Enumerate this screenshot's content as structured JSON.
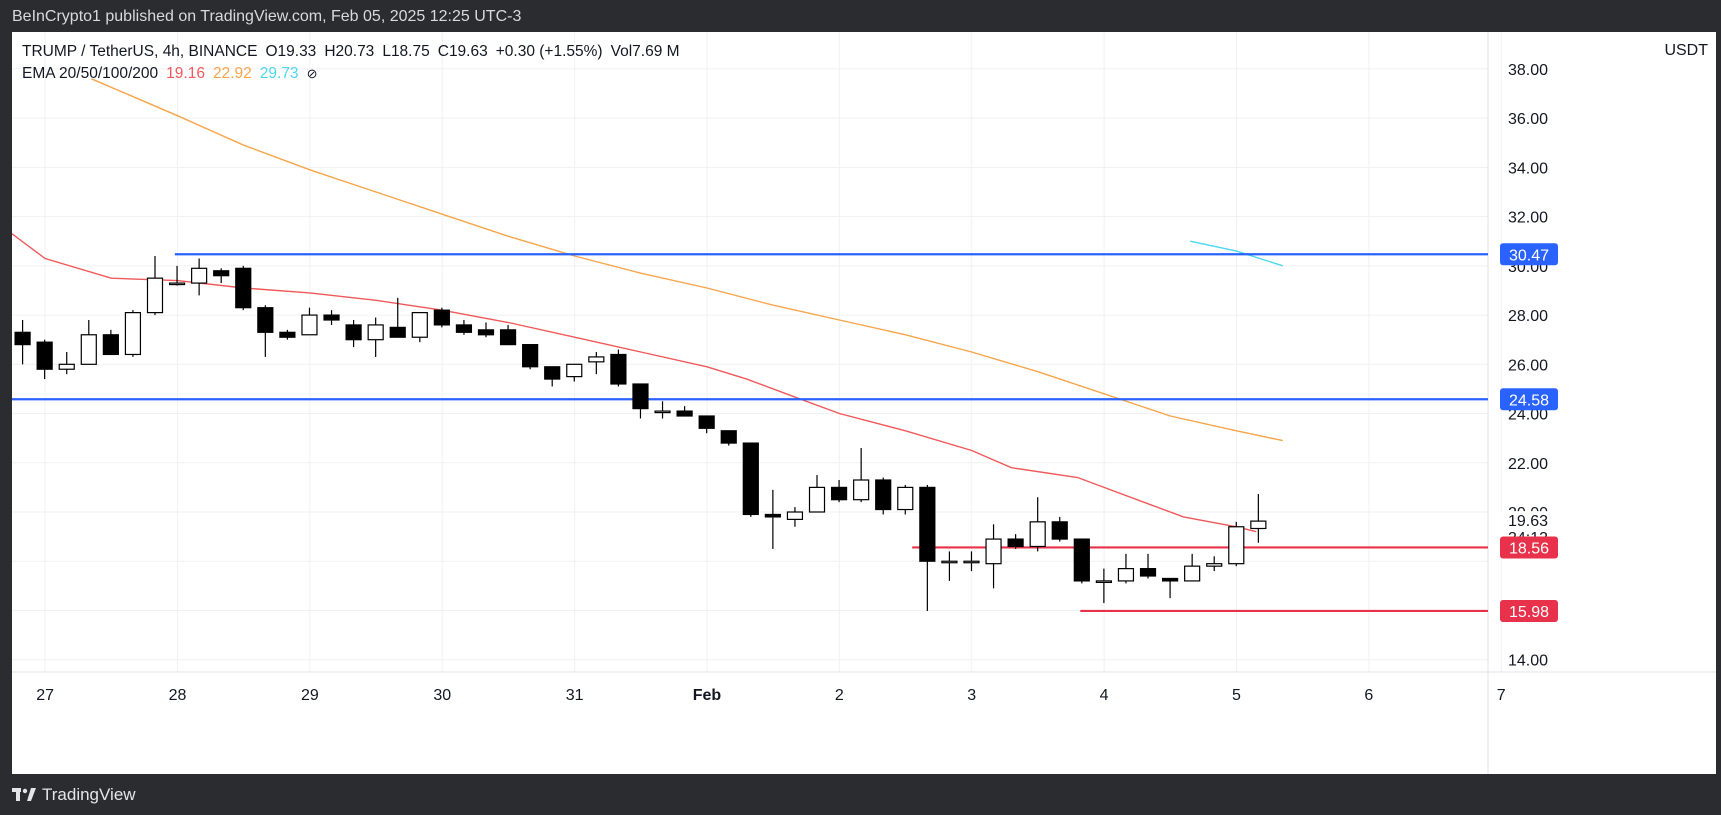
{
  "header": {
    "publisher": "BeInCrypto1 published on TradingView.com, Feb 05, 2025 12:25 UTC-3"
  },
  "footer": {
    "brand": "TradingView"
  },
  "legend": {
    "symbol": "TRUMP / TetherUS, 4h, BINANCE",
    "open_label": "O",
    "open": "19.33",
    "high_label": "H",
    "high": "20.73",
    "low_label": "L",
    "low": "18.75",
    "close_label": "C",
    "close": "19.63",
    "change": "+0.30 (+1.55%)",
    "vol_label": "Vol",
    "vol": "7.69 M",
    "ema_label": "EMA 20/50/100/200",
    "ema20": "19.16",
    "ema50": "22.92",
    "ema100": "29.73",
    "ema_hidden_icon": "eye-slash-icon"
  },
  "colors": {
    "ema20": "#f0595a",
    "ema50": "#f7a54a",
    "ema100": "#4dd7f0",
    "support": "#e8314a",
    "resistance": "#2962ff",
    "up_body": "#ffffff",
    "down_body": "#000000"
  },
  "chart_data": {
    "type": "candlestick",
    "unit": "USDT",
    "ylim": [
      13.5,
      39.5
    ],
    "yticks": [
      "14.00",
      "",
      "",
      "20.00",
      "22.00",
      "24.00",
      "26.00",
      "28.00",
      "30.00",
      "32.00",
      "34.00",
      "36.00",
      "38.00"
    ],
    "ytick_values": [
      14,
      16,
      18,
      20,
      22,
      24,
      26,
      28,
      30,
      32,
      34,
      36,
      38
    ],
    "xlim": [
      26.75,
      37.9
    ],
    "xticks": [
      {
        "x": 27,
        "label": "27"
      },
      {
        "x": 28,
        "label": "28"
      },
      {
        "x": 29,
        "label": "29"
      },
      {
        "x": 30,
        "label": "30"
      },
      {
        "x": 31,
        "label": "31"
      },
      {
        "x": 32,
        "label": "Feb"
      },
      {
        "x": 33,
        "label": "2"
      },
      {
        "x": 34,
        "label": "3"
      },
      {
        "x": 35,
        "label": "4"
      },
      {
        "x": 36,
        "label": "5"
      },
      {
        "x": 37,
        "label": "6"
      },
      {
        "x": 38,
        "label": "7"
      }
    ],
    "candle_spacing_days": 0.1667,
    "first_candle_x": 26.83,
    "candles": [
      [
        27.3,
        27.8,
        26.0,
        26.8
      ],
      [
        26.9,
        27.0,
        25.4,
        25.8
      ],
      [
        25.8,
        26.5,
        25.6,
        26.0
      ],
      [
        26.0,
        27.8,
        26.0,
        27.2
      ],
      [
        27.2,
        27.4,
        26.4,
        26.4
      ],
      [
        26.4,
        28.2,
        26.3,
        28.1
      ],
      [
        28.1,
        30.4,
        28.0,
        29.5
      ],
      [
        29.3,
        30.0,
        29.2,
        29.3
      ],
      [
        29.3,
        30.3,
        28.8,
        29.9
      ],
      [
        29.8,
        29.9,
        29.3,
        29.6
      ],
      [
        29.9,
        30.0,
        28.2,
        28.3
      ],
      [
        28.3,
        28.4,
        26.3,
        27.3
      ],
      [
        27.3,
        27.4,
        27.0,
        27.1
      ],
      [
        27.2,
        28.3,
        27.2,
        28.0
      ],
      [
        28.0,
        28.2,
        27.6,
        27.8
      ],
      [
        27.6,
        27.8,
        26.7,
        27.0
      ],
      [
        27.0,
        27.9,
        26.3,
        27.6
      ],
      [
        27.5,
        28.7,
        27.1,
        27.1
      ],
      [
        27.1,
        28.1,
        26.9,
        28.1
      ],
      [
        28.2,
        28.3,
        27.5,
        27.6
      ],
      [
        27.6,
        27.8,
        27.2,
        27.3
      ],
      [
        27.4,
        27.7,
        27.1,
        27.2
      ],
      [
        27.4,
        27.6,
        26.8,
        26.8
      ],
      [
        26.8,
        26.8,
        25.8,
        25.9
      ],
      [
        25.9,
        25.9,
        25.1,
        25.4
      ],
      [
        25.5,
        26.0,
        25.3,
        26.0
      ],
      [
        26.1,
        26.5,
        25.6,
        26.3
      ],
      [
        26.4,
        26.6,
        25.1,
        25.2
      ],
      [
        25.2,
        25.2,
        23.8,
        24.2
      ],
      [
        24.1,
        24.5,
        23.8,
        24.1
      ],
      [
        24.1,
        24.3,
        23.9,
        23.9
      ],
      [
        23.9,
        23.9,
        23.2,
        23.4
      ],
      [
        23.3,
        23.3,
        22.7,
        22.8
      ],
      [
        22.8,
        22.8,
        19.8,
        19.9
      ],
      [
        19.9,
        20.9,
        18.5,
        19.8
      ],
      [
        19.7,
        20.2,
        19.4,
        20.0
      ],
      [
        20.0,
        21.5,
        20.0,
        21.0
      ],
      [
        21.0,
        21.3,
        20.4,
        20.5
      ],
      [
        20.5,
        22.6,
        20.4,
        21.3
      ],
      [
        21.3,
        21.4,
        19.9,
        20.1
      ],
      [
        20.1,
        21.1,
        19.9,
        21.0
      ],
      [
        21.0,
        21.1,
        15.98,
        18.0
      ],
      [
        18.0,
        18.4,
        17.2,
        18.0
      ],
      [
        18.0,
        18.4,
        17.6,
        18.0
      ],
      [
        17.9,
        19.5,
        16.9,
        18.9
      ],
      [
        18.9,
        19.1,
        18.5,
        18.6
      ],
      [
        18.6,
        20.6,
        18.4,
        19.6
      ],
      [
        19.6,
        19.8,
        18.8,
        18.9
      ],
      [
        18.9,
        18.9,
        17.1,
        17.2
      ],
      [
        17.2,
        17.7,
        16.3,
        17.2
      ],
      [
        17.2,
        18.3,
        17.1,
        17.7
      ],
      [
        17.7,
        18.3,
        17.3,
        17.4
      ],
      [
        17.3,
        17.3,
        16.5,
        17.2
      ],
      [
        17.2,
        18.3,
        17.2,
        17.8
      ],
      [
        17.8,
        18.2,
        17.6,
        17.9
      ],
      [
        17.9,
        19.6,
        17.8,
        19.4
      ],
      [
        19.33,
        20.73,
        18.75,
        19.63
      ]
    ],
    "ema20": [
      [
        26.75,
        31.3
      ],
      [
        27.0,
        30.3
      ],
      [
        27.5,
        29.5
      ],
      [
        28.0,
        29.4
      ],
      [
        28.5,
        29.1
      ],
      [
        29.0,
        28.9
      ],
      [
        29.5,
        28.6
      ],
      [
        30.0,
        28.2
      ],
      [
        30.5,
        27.7
      ],
      [
        31.0,
        27.1
      ],
      [
        31.5,
        26.5
      ],
      [
        32.0,
        25.9
      ],
      [
        32.3,
        25.4
      ],
      [
        32.7,
        24.6
      ],
      [
        33.0,
        24.0
      ],
      [
        33.5,
        23.3
      ],
      [
        34.0,
        22.5
      ],
      [
        34.3,
        21.8
      ],
      [
        34.8,
        21.4
      ],
      [
        35.3,
        20.4
      ],
      [
        35.6,
        19.8
      ],
      [
        36.0,
        19.4
      ],
      [
        36.15,
        19.2
      ]
    ],
    "ema50": [
      [
        27.35,
        37.6
      ],
      [
        28.0,
        36.1
      ],
      [
        28.5,
        34.9
      ],
      [
        29.0,
        33.9
      ],
      [
        29.5,
        33.0
      ],
      [
        30.0,
        32.1
      ],
      [
        30.5,
        31.2
      ],
      [
        31.0,
        30.4
      ],
      [
        31.5,
        29.7
      ],
      [
        32.0,
        29.1
      ],
      [
        32.5,
        28.4
      ],
      [
        33.0,
        27.8
      ],
      [
        33.5,
        27.2
      ],
      [
        34.0,
        26.5
      ],
      [
        34.5,
        25.7
      ],
      [
        35.0,
        24.8
      ],
      [
        35.5,
        23.9
      ],
      [
        36.0,
        23.3
      ],
      [
        36.35,
        22.9
      ]
    ],
    "ema100": [
      [
        35.65,
        31.0
      ],
      [
        36.0,
        30.6
      ],
      [
        36.35,
        30.0
      ]
    ],
    "hlines": [
      {
        "y": 30.47,
        "label": "30.47",
        "color": "resistance",
        "x_start": 27.98
      },
      {
        "y": 24.58,
        "label": "24.58",
        "color": "resistance",
        "x_start": 26.75
      },
      {
        "y": 18.56,
        "label": "18.56",
        "color": "support",
        "x_start": 33.55
      },
      {
        "y": 15.98,
        "label": "15.98",
        "color": "support",
        "x_start": 34.82
      }
    ],
    "last_price": {
      "y": 19.63,
      "label": "19.63",
      "countdown": "34:13"
    }
  }
}
